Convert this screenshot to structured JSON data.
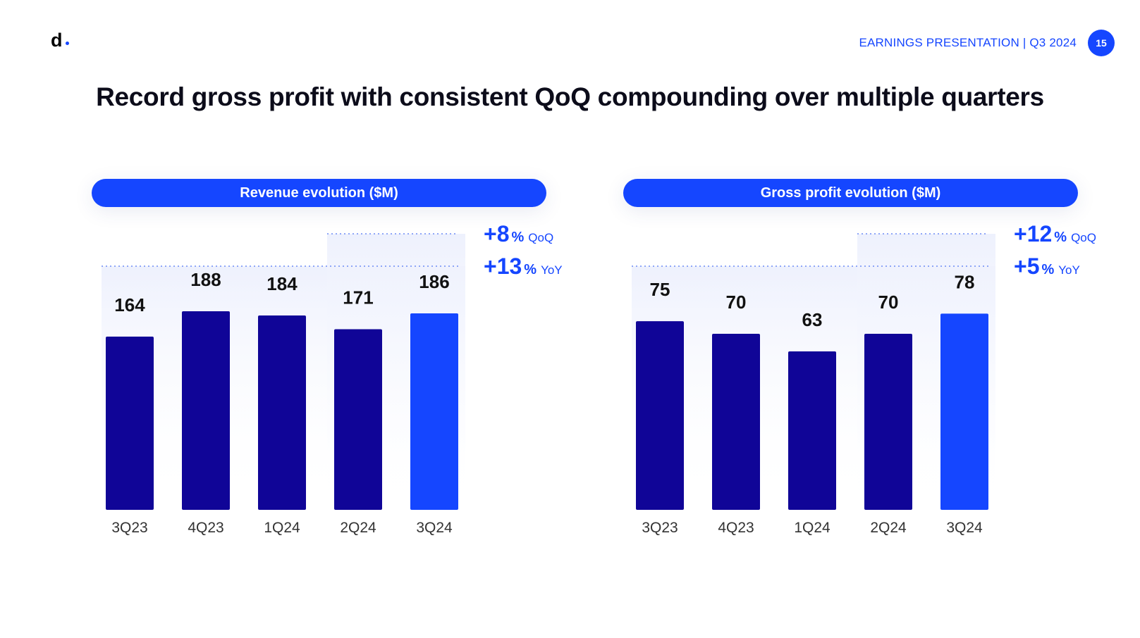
{
  "header": {
    "logo": "d",
    "presentation": "EARNINGS PRESENTATION | Q3 2024",
    "page_number": "15"
  },
  "title": "Record gross profit with consistent QoQ compounding over multiple quarters",
  "colors": {
    "accent": "#1546ff",
    "bar_dark": "#100597",
    "text": "#0c0c1a"
  },
  "chart_data": [
    {
      "type": "bar",
      "title": "Revenue evolution ($M)",
      "categories": [
        "3Q23",
        "4Q23",
        "1Q24",
        "2Q24",
        "3Q24"
      ],
      "values": [
        164,
        188,
        184,
        171,
        186
      ],
      "labels": [
        "164",
        "188",
        "184",
        "171",
        "186"
      ],
      "highlight_index": 4,
      "ylim": [
        0,
        200
      ],
      "growth": [
        {
          "value": "+8",
          "pct": "%",
          "suffix": "QoQ",
          "from_index": 3
        },
        {
          "value": "+13",
          "pct": "%",
          "suffix": "YoY",
          "from_index": 0
        }
      ]
    },
    {
      "type": "bar",
      "title": "Gross profit evolution ($M)",
      "categories": [
        "3Q23",
        "4Q23",
        "1Q24",
        "2Q24",
        "3Q24"
      ],
      "values": [
        75,
        70,
        63,
        70,
        78
      ],
      "labels": [
        "75",
        "70",
        "63",
        "70",
        "78"
      ],
      "highlight_index": 4,
      "ylim": [
        0,
        84
      ],
      "growth": [
        {
          "value": "+12",
          "pct": "%",
          "suffix": "QoQ",
          "from_index": 3
        },
        {
          "value": "+5",
          "pct": "%",
          "suffix": "YoY",
          "from_index": 0
        }
      ]
    }
  ]
}
